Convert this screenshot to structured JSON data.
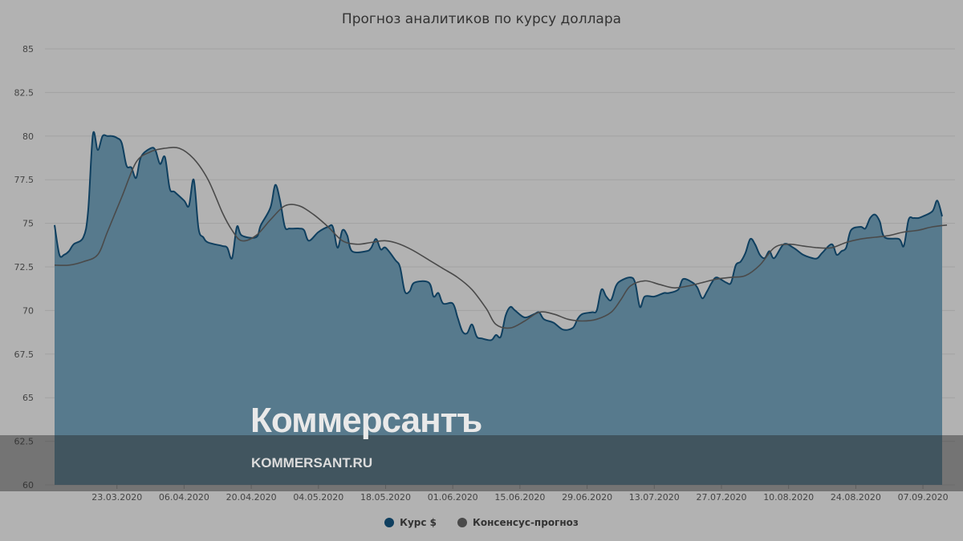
{
  "colors": {
    "background": "#b2b2b2",
    "area_fill": "#577a8d",
    "rate_line": "#0f3f5f",
    "consensus_line": "#4a4a4a",
    "grid": "#a2a2a2"
  },
  "watermark": {
    "logo": "Коммерсантъ",
    "url": "KOMMERSANT.RU"
  },
  "chart_data": {
    "type": "area",
    "title": "Прогноз аналитиков по курсу доллара",
    "xlabel": "",
    "ylabel": "",
    "ylim": [
      60,
      85
    ],
    "y_ticks": [
      "60",
      "62.5",
      "65",
      "67.5",
      "70",
      "72.5",
      "75",
      "77.5",
      "80",
      "82.5",
      "85"
    ],
    "x_ticks": [
      "23.03.2020",
      "06.04.2020",
      "20.04.2020",
      "04.05.2020",
      "18.05.2020",
      "01.06.2020",
      "15.06.2020",
      "29.06.2020",
      "13.07.2020",
      "27.07.2020",
      "10.08.2020",
      "24.08.2020",
      "07.09.2020"
    ],
    "x_range": [
      "2020-03-10",
      "2020-09-11"
    ],
    "grid": true,
    "legend_position": "bottom-center",
    "series": [
      {
        "name": "Курс $",
        "kind": "area",
        "points": [
          [
            "2020-03-10",
            74.9
          ],
          [
            "2020-03-11",
            73.2
          ],
          [
            "2020-03-12",
            73.2
          ],
          [
            "2020-03-13",
            73.4
          ],
          [
            "2020-03-14",
            73.8
          ],
          [
            "2020-03-16",
            74.2
          ],
          [
            "2020-03-17",
            75.7
          ],
          [
            "2020-03-18",
            80.1
          ],
          [
            "2020-03-19",
            79.2
          ],
          [
            "2020-03-20",
            80.0
          ],
          [
            "2020-03-21",
            80.0
          ],
          [
            "2020-03-22",
            80.0
          ],
          [
            "2020-03-23",
            79.9
          ],
          [
            "2020-03-24",
            79.6
          ],
          [
            "2020-03-25",
            78.3
          ],
          [
            "2020-03-26",
            78.2
          ],
          [
            "2020-03-27",
            77.6
          ],
          [
            "2020-03-28",
            78.8
          ],
          [
            "2020-03-30",
            79.3
          ],
          [
            "2020-03-31",
            79.2
          ],
          [
            "2020-04-01",
            78.4
          ],
          [
            "2020-04-02",
            78.8
          ],
          [
            "2020-04-03",
            77.0
          ],
          [
            "2020-04-04",
            76.8
          ],
          [
            "2020-04-06",
            76.3
          ],
          [
            "2020-04-07",
            76.0
          ],
          [
            "2020-04-08",
            77.5
          ],
          [
            "2020-04-09",
            74.7
          ],
          [
            "2020-04-10",
            74.2
          ],
          [
            "2020-04-11",
            73.9
          ],
          [
            "2020-04-14",
            73.7
          ],
          [
            "2020-04-15",
            73.6
          ],
          [
            "2020-04-16",
            73.0
          ],
          [
            "2020-04-17",
            74.8
          ],
          [
            "2020-04-18",
            74.3
          ],
          [
            "2020-04-21",
            74.2
          ],
          [
            "2020-04-22",
            74.9
          ],
          [
            "2020-04-24",
            75.9
          ],
          [
            "2020-04-25",
            77.2
          ],
          [
            "2020-04-26",
            76.3
          ],
          [
            "2020-04-27",
            74.8
          ],
          [
            "2020-04-28",
            74.7
          ],
          [
            "2020-04-30",
            74.7
          ],
          [
            "2020-05-01",
            74.6
          ],
          [
            "2020-05-02",
            74.0
          ],
          [
            "2020-05-04",
            74.5
          ],
          [
            "2020-05-06",
            74.8
          ],
          [
            "2020-05-07",
            74.8
          ],
          [
            "2020-05-08",
            73.6
          ],
          [
            "2020-05-09",
            74.6
          ],
          [
            "2020-05-10",
            74.3
          ],
          [
            "2020-05-11",
            73.4
          ],
          [
            "2020-05-14",
            73.4
          ],
          [
            "2020-05-15",
            73.6
          ],
          [
            "2020-05-16",
            74.1
          ],
          [
            "2020-05-17",
            73.5
          ],
          [
            "2020-05-18",
            73.6
          ],
          [
            "2020-05-20",
            72.9
          ],
          [
            "2020-05-21",
            72.5
          ],
          [
            "2020-05-22",
            71.1
          ],
          [
            "2020-05-23",
            71.1
          ],
          [
            "2020-05-24",
            71.6
          ],
          [
            "2020-05-27",
            71.6
          ],
          [
            "2020-05-28",
            70.8
          ],
          [
            "2020-05-29",
            71.0
          ],
          [
            "2020-05-30",
            70.4
          ],
          [
            "2020-06-01",
            70.4
          ],
          [
            "2020-06-02",
            69.6
          ],
          [
            "2020-06-03",
            68.8
          ],
          [
            "2020-06-04",
            68.7
          ],
          [
            "2020-06-05",
            69.2
          ],
          [
            "2020-06-06",
            68.5
          ],
          [
            "2020-06-07",
            68.4
          ],
          [
            "2020-06-09",
            68.3
          ],
          [
            "2020-06-10",
            68.6
          ],
          [
            "2020-06-11",
            68.5
          ],
          [
            "2020-06-12",
            69.7
          ],
          [
            "2020-06-13",
            70.2
          ],
          [
            "2020-06-14",
            70.0
          ],
          [
            "2020-06-16",
            69.6
          ],
          [
            "2020-06-18",
            69.8
          ],
          [
            "2020-06-19",
            69.9
          ],
          [
            "2020-06-20",
            69.5
          ],
          [
            "2020-06-22",
            69.3
          ],
          [
            "2020-06-24",
            68.9
          ],
          [
            "2020-06-26",
            69.0
          ],
          [
            "2020-06-27",
            69.5
          ],
          [
            "2020-06-28",
            69.8
          ],
          [
            "2020-06-30",
            69.9
          ],
          [
            "2020-07-01",
            70.0
          ],
          [
            "2020-07-02",
            71.2
          ],
          [
            "2020-07-03",
            70.8
          ],
          [
            "2020-07-04",
            70.6
          ],
          [
            "2020-07-05",
            71.4
          ],
          [
            "2020-07-06",
            71.7
          ],
          [
            "2020-07-08",
            71.9
          ],
          [
            "2020-07-09",
            71.6
          ],
          [
            "2020-07-10",
            70.2
          ],
          [
            "2020-07-11",
            70.8
          ],
          [
            "2020-07-13",
            70.8
          ],
          [
            "2020-07-15",
            71.0
          ],
          [
            "2020-07-16",
            71.0
          ],
          [
            "2020-07-18",
            71.2
          ],
          [
            "2020-07-19",
            71.8
          ],
          [
            "2020-07-21",
            71.6
          ],
          [
            "2020-07-22",
            71.3
          ],
          [
            "2020-07-23",
            70.7
          ],
          [
            "2020-07-24",
            71.1
          ],
          [
            "2020-07-25",
            71.6
          ],
          [
            "2020-07-26",
            71.9
          ],
          [
            "2020-07-28",
            71.6
          ],
          [
            "2020-07-29",
            71.6
          ],
          [
            "2020-07-30",
            72.6
          ],
          [
            "2020-07-31",
            72.8
          ],
          [
            "2020-08-01",
            73.3
          ],
          [
            "2020-08-02",
            74.1
          ],
          [
            "2020-08-03",
            73.8
          ],
          [
            "2020-08-04",
            73.2
          ],
          [
            "2020-08-05",
            73.0
          ],
          [
            "2020-08-06",
            73.4
          ],
          [
            "2020-08-07",
            73.0
          ],
          [
            "2020-08-09",
            73.8
          ],
          [
            "2020-08-11",
            73.6
          ],
          [
            "2020-08-13",
            73.2
          ],
          [
            "2020-08-15",
            73.0
          ],
          [
            "2020-08-16",
            73.0
          ],
          [
            "2020-08-17",
            73.3
          ],
          [
            "2020-08-19",
            73.8
          ],
          [
            "2020-08-20",
            73.2
          ],
          [
            "2020-08-21",
            73.4
          ],
          [
            "2020-08-22",
            73.6
          ],
          [
            "2020-08-23",
            74.6
          ],
          [
            "2020-08-25",
            74.8
          ],
          [
            "2020-08-26",
            74.7
          ],
          [
            "2020-08-27",
            75.3
          ],
          [
            "2020-08-28",
            75.5
          ],
          [
            "2020-08-29",
            75.1
          ],
          [
            "2020-08-30",
            74.2
          ],
          [
            "2020-09-02",
            74.1
          ],
          [
            "2020-09-03",
            73.7
          ],
          [
            "2020-09-04",
            75.2
          ],
          [
            "2020-09-05",
            75.3
          ],
          [
            "2020-09-06",
            75.3
          ],
          [
            "2020-09-07",
            75.4
          ],
          [
            "2020-09-09",
            75.7
          ],
          [
            "2020-09-10",
            76.3
          ],
          [
            "2020-09-11",
            75.4
          ]
        ]
      },
      {
        "name": "Консенсус-прогноз",
        "kind": "line",
        "points": [
          [
            "2020-03-10",
            72.6
          ],
          [
            "2020-03-13",
            72.6
          ],
          [
            "2020-03-16",
            72.8
          ],
          [
            "2020-03-19",
            73.2
          ],
          [
            "2020-03-21",
            74.5
          ],
          [
            "2020-03-24",
            76.5
          ],
          [
            "2020-03-27",
            78.5
          ],
          [
            "2020-03-30",
            79.1
          ],
          [
            "2020-04-02",
            79.3
          ],
          [
            "2020-04-05",
            79.3
          ],
          [
            "2020-04-08",
            78.7
          ],
          [
            "2020-04-11",
            77.5
          ],
          [
            "2020-04-14",
            75.6
          ],
          [
            "2020-04-16",
            74.6
          ],
          [
            "2020-04-18",
            74.0
          ],
          [
            "2020-04-21",
            74.3
          ],
          [
            "2020-04-24",
            75.2
          ],
          [
            "2020-04-27",
            76.0
          ],
          [
            "2020-04-30",
            76.0
          ],
          [
            "2020-05-03",
            75.5
          ],
          [
            "2020-05-06",
            74.8
          ],
          [
            "2020-05-09",
            74.0
          ],
          [
            "2020-05-12",
            73.8
          ],
          [
            "2020-05-15",
            73.9
          ],
          [
            "2020-05-18",
            74.0
          ],
          [
            "2020-05-21",
            73.8
          ],
          [
            "2020-05-24",
            73.4
          ],
          [
            "2020-05-27",
            72.9
          ],
          [
            "2020-05-30",
            72.4
          ],
          [
            "2020-06-02",
            71.9
          ],
          [
            "2020-06-05",
            71.2
          ],
          [
            "2020-06-08",
            70.1
          ],
          [
            "2020-06-10",
            69.2
          ],
          [
            "2020-06-13",
            69.0
          ],
          [
            "2020-06-16",
            69.4
          ],
          [
            "2020-06-19",
            69.9
          ],
          [
            "2020-06-22",
            69.8
          ],
          [
            "2020-06-25",
            69.5
          ],
          [
            "2020-06-28",
            69.4
          ],
          [
            "2020-07-01",
            69.5
          ],
          [
            "2020-07-04",
            69.9
          ],
          [
            "2020-07-06",
            70.6
          ],
          [
            "2020-07-08",
            71.4
          ],
          [
            "2020-07-11",
            71.7
          ],
          [
            "2020-07-14",
            71.5
          ],
          [
            "2020-07-17",
            71.3
          ],
          [
            "2020-07-20",
            71.4
          ],
          [
            "2020-07-23",
            71.6
          ],
          [
            "2020-07-26",
            71.8
          ],
          [
            "2020-07-29",
            71.9
          ],
          [
            "2020-08-01",
            72.0
          ],
          [
            "2020-08-04",
            72.6
          ],
          [
            "2020-08-07",
            73.6
          ],
          [
            "2020-08-10",
            73.8
          ],
          [
            "2020-08-13",
            73.7
          ],
          [
            "2020-08-16",
            73.6
          ],
          [
            "2020-08-19",
            73.6
          ],
          [
            "2020-08-22",
            73.9
          ],
          [
            "2020-08-25",
            74.1
          ],
          [
            "2020-08-28",
            74.2
          ],
          [
            "2020-08-31",
            74.3
          ],
          [
            "2020-09-03",
            74.5
          ],
          [
            "2020-09-06",
            74.6
          ],
          [
            "2020-09-09",
            74.8
          ],
          [
            "2020-09-12",
            74.9
          ]
        ]
      }
    ]
  }
}
